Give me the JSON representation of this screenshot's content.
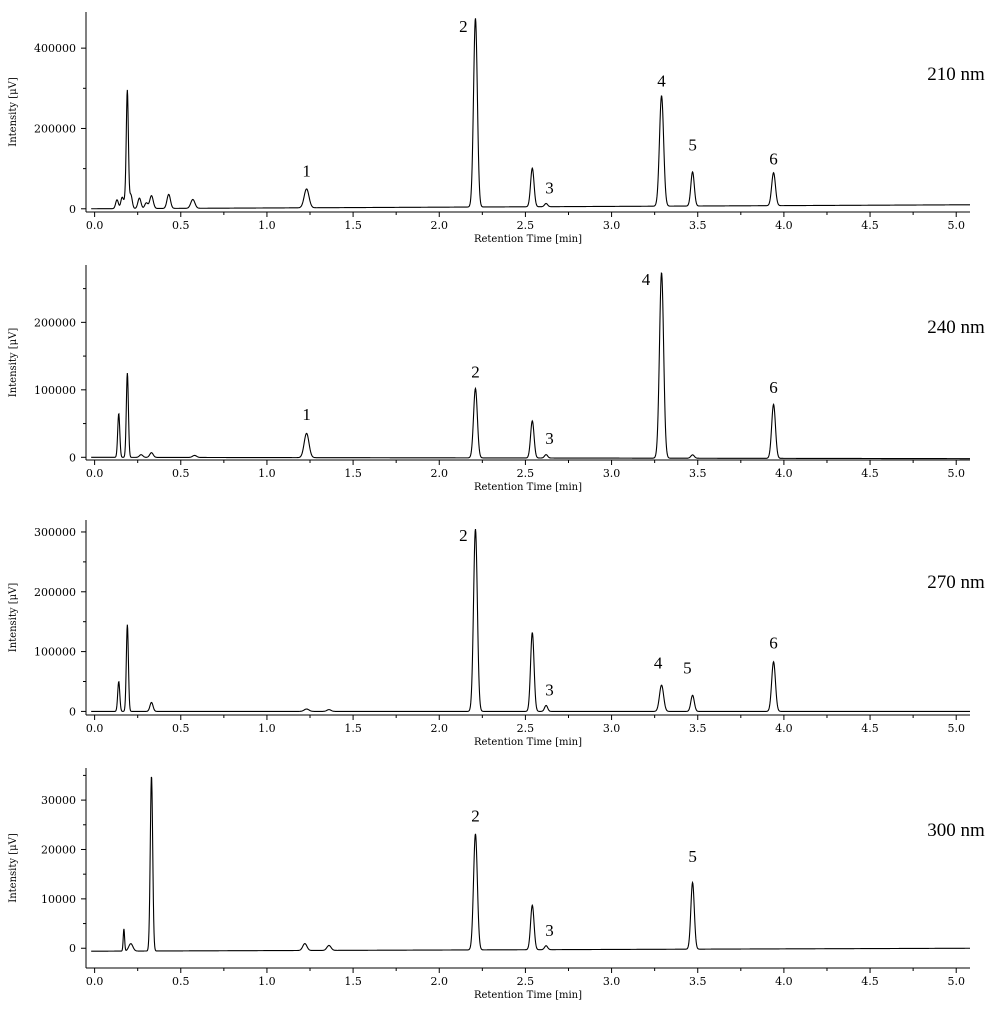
{
  "chart_data": [
    {
      "type": "line",
      "wavelength_label": "210 nm",
      "xlabel": "Retention Time [min]",
      "ylabel": "Intensity [μV]",
      "xlim": [
        -0.05,
        5.08
      ],
      "ylim": [
        -8000,
        490000
      ],
      "xticks": [
        "0.0",
        "0.5",
        "1.0",
        "1.5",
        "2.0",
        "2.5",
        "3.0",
        "3.5",
        "4.0",
        "4.5",
        "5.0"
      ],
      "yticks": [
        0,
        200000,
        400000
      ],
      "ytick_labels": [
        "0",
        "200000",
        "400000"
      ],
      "baseline": 0,
      "baseline_end": 10000,
      "peaks": [
        {
          "t": 0.13,
          "h": 22000,
          "w": 0.008
        },
        {
          "t": 0.16,
          "h": 28000,
          "w": 0.008
        },
        {
          "t": 0.18,
          "h": 25000,
          "w": 0.007
        },
        {
          "t": 0.19,
          "h": 285000,
          "w": 0.006
        },
        {
          "t": 0.21,
          "h": 35000,
          "w": 0.008
        },
        {
          "t": 0.26,
          "h": 26000,
          "w": 0.009
        },
        {
          "t": 0.3,
          "h": 14000,
          "w": 0.009
        },
        {
          "t": 0.33,
          "h": 32000,
          "w": 0.01
        },
        {
          "t": 0.43,
          "h": 35000,
          "w": 0.01
        },
        {
          "t": 0.57,
          "h": 22000,
          "w": 0.012
        },
        {
          "t": 1.23,
          "h": 47000,
          "w": 0.014
        },
        {
          "t": 2.21,
          "h": 470000,
          "w": 0.011
        },
        {
          "t": 2.54,
          "h": 96000,
          "w": 0.01
        },
        {
          "t": 2.62,
          "h": 8000,
          "w": 0.009
        },
        {
          "t": 3.29,
          "h": 275000,
          "w": 0.012
        },
        {
          "t": 3.47,
          "h": 85000,
          "w": 0.01
        },
        {
          "t": 3.94,
          "h": 82000,
          "w": 0.011
        }
      ],
      "annotations": [
        {
          "text": "1",
          "t": 1.23,
          "y": 80000
        },
        {
          "text": "2",
          "t": 2.14,
          "y": 440000
        },
        {
          "text": "3",
          "t": 2.64,
          "y": 38000
        },
        {
          "text": "4",
          "t": 3.29,
          "y": 305000
        },
        {
          "text": "5",
          "t": 3.47,
          "y": 145000
        },
        {
          "text": "6",
          "t": 3.94,
          "y": 110000
        }
      ]
    },
    {
      "type": "line",
      "wavelength_label": "240 nm",
      "xlabel": "Retention Time [min]",
      "ylabel": "Intensity [μV]",
      "xlim": [
        -0.05,
        5.08
      ],
      "ylim": [
        -4000,
        285000
      ],
      "xticks": [
        "0.0",
        "0.5",
        "1.0",
        "1.5",
        "2.0",
        "2.5",
        "3.0",
        "3.5",
        "4.0",
        "4.5",
        "5.0"
      ],
      "yticks": [
        0,
        100000,
        200000
      ],
      "ytick_labels": [
        "0",
        "100000",
        "200000"
      ],
      "baseline": 0,
      "baseline_end": -2000,
      "peaks": [
        {
          "t": 0.14,
          "h": 65000,
          "w": 0.006
        },
        {
          "t": 0.19,
          "h": 125000,
          "w": 0.006
        },
        {
          "t": 0.27,
          "h": 4000,
          "w": 0.01
        },
        {
          "t": 0.33,
          "h": 7000,
          "w": 0.01
        },
        {
          "t": 0.58,
          "h": 3000,
          "w": 0.012
        },
        {
          "t": 1.23,
          "h": 36000,
          "w": 0.014
        },
        {
          "t": 2.21,
          "h": 103000,
          "w": 0.011
        },
        {
          "t": 2.54,
          "h": 55000,
          "w": 0.01
        },
        {
          "t": 2.62,
          "h": 5000,
          "w": 0.009
        },
        {
          "t": 3.29,
          "h": 275000,
          "w": 0.012
        },
        {
          "t": 3.47,
          "h": 5000,
          "w": 0.01
        },
        {
          "t": 3.94,
          "h": 80000,
          "w": 0.011
        }
      ],
      "annotations": [
        {
          "text": "1",
          "t": 1.23,
          "y": 55000
        },
        {
          "text": "2",
          "t": 2.21,
          "y": 118000
        },
        {
          "text": "3",
          "t": 2.64,
          "y": 20000
        },
        {
          "text": "4",
          "t": 3.2,
          "y": 255000
        },
        {
          "text": "6",
          "t": 3.94,
          "y": 95000
        }
      ]
    },
    {
      "type": "line",
      "wavelength_label": "270 nm",
      "xlabel": "Retention Time [min]",
      "ylabel": "Intensity [μV]",
      "xlim": [
        -0.05,
        5.08
      ],
      "ylim": [
        -6000,
        320000
      ],
      "xticks": [
        "0.0",
        "0.5",
        "1.0",
        "1.5",
        "2.0",
        "2.5",
        "3.0",
        "3.5",
        "4.0",
        "4.5",
        "5.0"
      ],
      "yticks": [
        0,
        100000,
        200000,
        300000
      ],
      "ytick_labels": [
        "0",
        "100000",
        "200000",
        "300000"
      ],
      "baseline": 0,
      "baseline_end": 0,
      "peaks": [
        {
          "t": 0.14,
          "h": 50000,
          "w": 0.006
        },
        {
          "t": 0.19,
          "h": 145000,
          "w": 0.006
        },
        {
          "t": 0.33,
          "h": 15000,
          "w": 0.009
        },
        {
          "t": 1.23,
          "h": 4000,
          "w": 0.014
        },
        {
          "t": 1.36,
          "h": 3000,
          "w": 0.012
        },
        {
          "t": 2.21,
          "h": 305000,
          "w": 0.011
        },
        {
          "t": 2.54,
          "h": 132000,
          "w": 0.01
        },
        {
          "t": 2.62,
          "h": 10000,
          "w": 0.009
        },
        {
          "t": 3.29,
          "h": 44000,
          "w": 0.012
        },
        {
          "t": 3.47,
          "h": 27000,
          "w": 0.01
        },
        {
          "t": 3.94,
          "h": 83000,
          "w": 0.011
        }
      ],
      "annotations": [
        {
          "text": "2",
          "t": 2.14,
          "y": 285000
        },
        {
          "text": "3",
          "t": 2.64,
          "y": 27000
        },
        {
          "text": "4",
          "t": 3.27,
          "y": 72000
        },
        {
          "text": "5",
          "t": 3.44,
          "y": 63000
        },
        {
          "text": "6",
          "t": 3.94,
          "y": 105000
        }
      ]
    },
    {
      "type": "line",
      "wavelength_label": "300 nm",
      "xlabel": "Retention Time [min]",
      "ylabel": "Intensity [μV]",
      "xlim": [
        -0.05,
        5.08
      ],
      "ylim": [
        -4000,
        36500
      ],
      "xticks": [
        "0.0",
        "0.5",
        "1.0",
        "1.5",
        "2.0",
        "2.5",
        "3.0",
        "3.5",
        "4.0",
        "4.5",
        "5.0"
      ],
      "yticks": [
        0,
        10000,
        20000,
        30000
      ],
      "ytick_labels": [
        "0",
        "10000",
        "20000",
        "30000"
      ],
      "baseline": -600,
      "baseline_end": 0,
      "peaks": [
        {
          "t": 0.17,
          "h": 4500,
          "w": 0.004
        },
        {
          "t": 0.21,
          "h": 1500,
          "w": 0.012
        },
        {
          "t": 0.33,
          "h": 35500,
          "w": 0.007
        },
        {
          "t": 1.22,
          "h": 1400,
          "w": 0.012
        },
        {
          "t": 1.36,
          "h": 1000,
          "w": 0.012
        },
        {
          "t": 2.21,
          "h": 23500,
          "w": 0.011
        },
        {
          "t": 2.54,
          "h": 9000,
          "w": 0.01
        },
        {
          "t": 2.62,
          "h": 800,
          "w": 0.009
        },
        {
          "t": 3.47,
          "h": 13500,
          "w": 0.01
        }
      ],
      "annotations": [
        {
          "text": "2",
          "t": 2.21,
          "y": 25700
        },
        {
          "text": "3",
          "t": 2.64,
          "y": 2500
        },
        {
          "text": "5",
          "t": 3.47,
          "y": 17500
        }
      ]
    }
  ]
}
